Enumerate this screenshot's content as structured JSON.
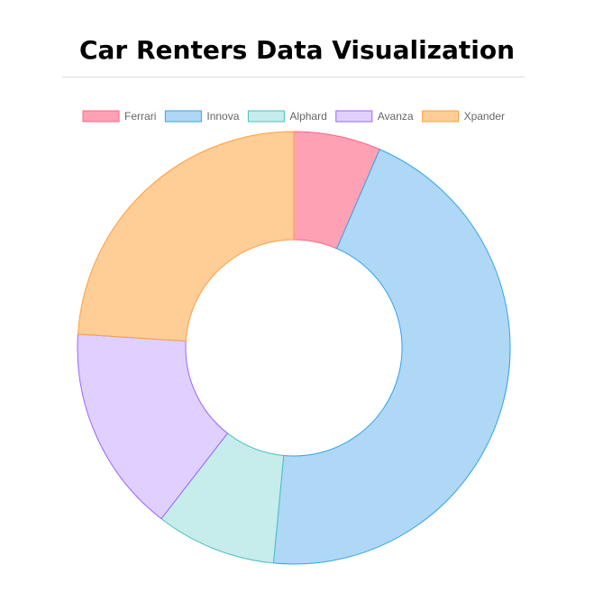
{
  "page": {
    "title": "Car Renters Data Visualization"
  },
  "chart_data": {
    "type": "doughnut",
    "title": "",
    "legend_position": "top",
    "categories": [
      "Ferrari",
      "Innova",
      "Alphard",
      "Avanza",
      "Xpander"
    ],
    "values": [
      6.5,
      45,
      9,
      15.5,
      24
    ],
    "colors": {
      "fill": [
        "#ffa1b5",
        "#aed8f6",
        "#c7ecec",
        "#e0d0ff",
        "#ffcd96"
      ],
      "border": [
        "#ff6384",
        "#36a2eb",
        "#4bc0c0",
        "#9966ff",
        "#ff9f40"
      ]
    }
  }
}
